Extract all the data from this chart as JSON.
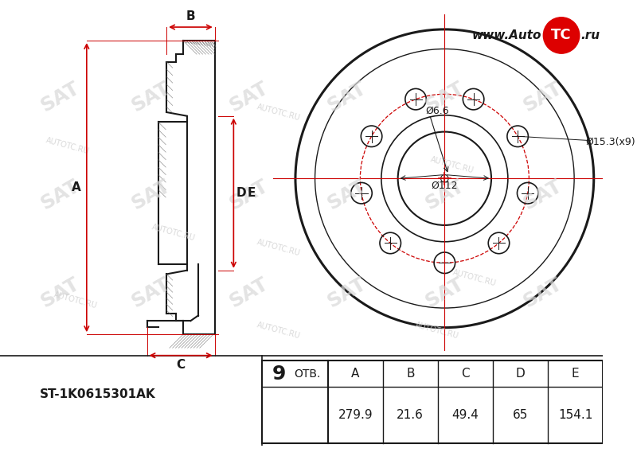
{
  "bg_color": "#ffffff",
  "line_color": "#1a1a1a",
  "red_color": "#cc0000",
  "part_number": "ST-1K0615301AK",
  "holes_count": "9",
  "otv_label": "ОТВ.",
  "table_headers": [
    "A",
    "B",
    "C",
    "D",
    "E"
  ],
  "table_values": [
    "279.9",
    "21.6",
    "49.4",
    "65",
    "154.1"
  ],
  "label_A": "A",
  "label_B": "B",
  "label_C": "C",
  "label_D": "D",
  "label_E": "E",
  "dim_d66": "Ø6.6",
  "dim_d153": "Ø15.3(x9)",
  "dim_d112": "Ø112",
  "logo_text": "TC"
}
